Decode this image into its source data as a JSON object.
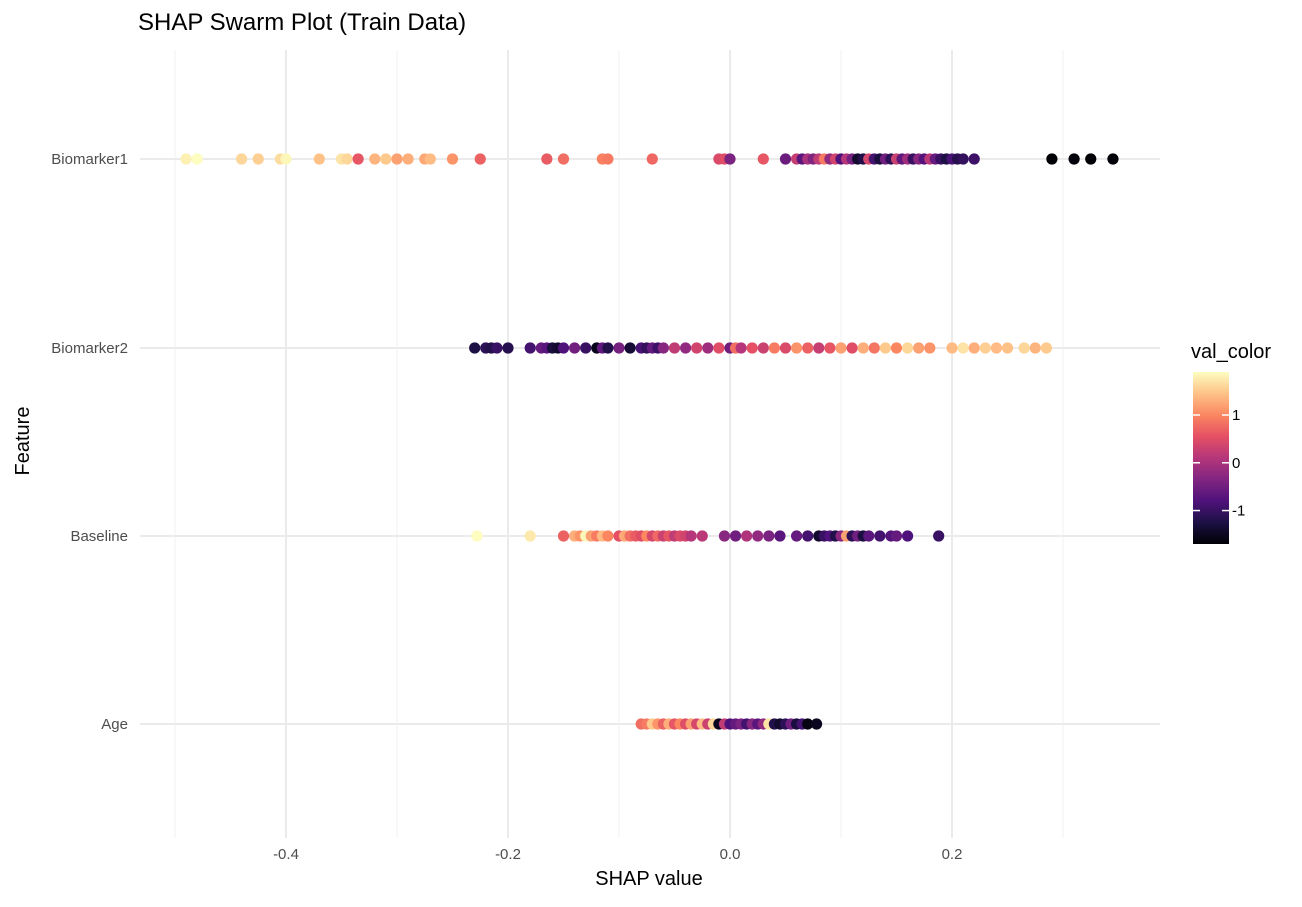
{
  "chart_data": {
    "type": "scatter",
    "subtype": "swarm",
    "title": "SHAP Swarm Plot (Train Data)",
    "xlabel": "SHAP value",
    "ylabel": "Feature",
    "xlim": [
      -0.5,
      0.38
    ],
    "x_ticks": [
      -0.4,
      -0.2,
      0.0,
      0.2
    ],
    "x_tick_labels": [
      "-0.4",
      "-0.2",
      "0.0",
      "0.2"
    ],
    "categories": [
      "Biomarker1",
      "Biomarker2",
      "Baseline",
      "Age"
    ],
    "grid": true,
    "legend": {
      "title": "val_color",
      "placement": "right",
      "ticks": [
        1,
        0,
        -1
      ],
      "tick_labels": [
        "1",
        "0",
        "-1"
      ],
      "range": [
        -1.7,
        1.9
      ],
      "palette": "magma",
      "colors": [
        "#000004",
        "#1c1044",
        "#4f127b",
        "#812581",
        "#b5367a",
        "#e55064",
        "#fb8761",
        "#fec287",
        "#fcfdbf"
      ]
    },
    "series": [
      {
        "feature": "Biomarker1",
        "points": [
          [
            -0.49,
            1.8
          ],
          [
            -0.48,
            1.9
          ],
          [
            -0.44,
            1.6
          ],
          [
            -0.425,
            1.55
          ],
          [
            -0.405,
            1.65
          ],
          [
            -0.4,
            1.85
          ],
          [
            -0.37,
            1.45
          ],
          [
            -0.35,
            1.7
          ],
          [
            -0.345,
            1.6
          ],
          [
            -0.335,
            0.6
          ],
          [
            -0.32,
            1.35
          ],
          [
            -0.31,
            1.5
          ],
          [
            -0.3,
            1.2
          ],
          [
            -0.29,
            1.3
          ],
          [
            -0.275,
            1.25
          ],
          [
            -0.27,
            1.4
          ],
          [
            -0.25,
            1.1
          ],
          [
            -0.225,
            0.7
          ],
          [
            -0.165,
            0.65
          ],
          [
            -0.15,
            0.8
          ],
          [
            -0.115,
            0.95
          ],
          [
            -0.11,
            0.9
          ],
          [
            -0.07,
            0.75
          ],
          [
            -0.01,
            0.45
          ],
          [
            -0.005,
            0.5
          ],
          [
            0.0,
            -0.4
          ],
          [
            0.03,
            0.6
          ],
          [
            0.05,
            -0.55
          ],
          [
            0.06,
            0.25
          ],
          [
            0.065,
            -0.7
          ],
          [
            0.07,
            0.0
          ],
          [
            0.075,
            -0.35
          ],
          [
            0.08,
            0.2
          ],
          [
            0.085,
            0.9
          ],
          [
            0.09,
            -0.2
          ],
          [
            0.095,
            0.35
          ],
          [
            0.1,
            -0.8
          ],
          [
            0.105,
            0.1
          ],
          [
            0.11,
            -0.45
          ],
          [
            0.115,
            -1.4
          ],
          [
            0.12,
            -1.2
          ],
          [
            0.125,
            0.4
          ],
          [
            0.13,
            -0.9
          ],
          [
            0.135,
            -1.3
          ],
          [
            0.14,
            -0.5
          ],
          [
            0.145,
            -1.1
          ],
          [
            0.15,
            0.3
          ],
          [
            0.155,
            -0.65
          ],
          [
            0.16,
            -0.1
          ],
          [
            0.165,
            -1.0
          ],
          [
            0.17,
            -0.3
          ],
          [
            0.175,
            -0.75
          ],
          [
            0.18,
            0.15
          ],
          [
            0.185,
            -0.6
          ],
          [
            0.19,
            -1.0
          ],
          [
            0.195,
            -1.25
          ],
          [
            0.2,
            -0.85
          ],
          [
            0.205,
            -1.15
          ],
          [
            0.21,
            -1.05
          ],
          [
            0.22,
            -0.95
          ],
          [
            0.29,
            -1.7
          ],
          [
            0.31,
            -1.65
          ],
          [
            0.325,
            -1.7
          ],
          [
            0.345,
            -1.68
          ]
        ]
      },
      {
        "feature": "Biomarker2",
        "points": [
          [
            -0.23,
            -1.25
          ],
          [
            -0.22,
            -1.1
          ],
          [
            -0.215,
            -1.2
          ],
          [
            -0.21,
            -1.0
          ],
          [
            -0.2,
            -1.15
          ],
          [
            -0.18,
            -0.9
          ],
          [
            -0.17,
            -0.6
          ],
          [
            -0.165,
            -0.7
          ],
          [
            -0.16,
            -1.3
          ],
          [
            -0.155,
            -1.4
          ],
          [
            -0.15,
            -0.8
          ],
          [
            -0.14,
            -0.5
          ],
          [
            -0.13,
            -1.0
          ],
          [
            -0.12,
            -1.55
          ],
          [
            -0.115,
            -0.65
          ],
          [
            -0.11,
            -1.2
          ],
          [
            -0.1,
            -0.45
          ],
          [
            -0.09,
            -1.35
          ],
          [
            -0.08,
            -0.85
          ],
          [
            -0.075,
            -1.05
          ],
          [
            -0.07,
            -0.6
          ],
          [
            -0.065,
            -0.95
          ],
          [
            -0.06,
            -0.3
          ],
          [
            -0.05,
            0.2
          ],
          [
            -0.04,
            -0.2
          ],
          [
            -0.03,
            0.35
          ],
          [
            -0.02,
            -0.1
          ],
          [
            -0.01,
            0.5
          ],
          [
            0.0,
            -0.5
          ],
          [
            0.005,
            0.8
          ],
          [
            0.01,
            0.1
          ],
          [
            0.02,
            0.55
          ],
          [
            0.03,
            0.3
          ],
          [
            0.04,
            0.9
          ],
          [
            0.05,
            0.45
          ],
          [
            0.06,
            1.1
          ],
          [
            0.07,
            0.7
          ],
          [
            0.08,
            0.25
          ],
          [
            0.09,
            0.6
          ],
          [
            0.1,
            1.2
          ],
          [
            0.11,
            0.5
          ],
          [
            0.12,
            1.3
          ],
          [
            0.13,
            0.85
          ],
          [
            0.14,
            1.5
          ],
          [
            0.15,
            1.0
          ],
          [
            0.16,
            1.6
          ],
          [
            0.17,
            1.2
          ],
          [
            0.18,
            1.1
          ],
          [
            0.2,
            1.4
          ],
          [
            0.21,
            1.7
          ],
          [
            0.22,
            1.3
          ],
          [
            0.23,
            1.55
          ],
          [
            0.24,
            1.4
          ],
          [
            0.25,
            1.45
          ],
          [
            0.265,
            1.6
          ],
          [
            0.275,
            1.35
          ],
          [
            0.285,
            1.5
          ]
        ]
      },
      {
        "feature": "Baseline",
        "points": [
          [
            -0.228,
            1.9
          ],
          [
            -0.18,
            1.75
          ],
          [
            -0.15,
            0.7
          ],
          [
            -0.14,
            1.3
          ],
          [
            -0.135,
            1.1
          ],
          [
            -0.13,
            1.85
          ],
          [
            -0.125,
            1.2
          ],
          [
            -0.12,
            0.9
          ],
          [
            -0.115,
            1.4
          ],
          [
            -0.11,
            1.0
          ],
          [
            -0.1,
            0.55
          ],
          [
            -0.095,
            1.25
          ],
          [
            -0.09,
            0.8
          ],
          [
            -0.085,
            0.65
          ],
          [
            -0.08,
            0.5
          ],
          [
            -0.075,
            1.0
          ],
          [
            -0.07,
            0.4
          ],
          [
            -0.065,
            0.75
          ],
          [
            -0.06,
            0.3
          ],
          [
            -0.055,
            0.6
          ],
          [
            -0.05,
            0.2
          ],
          [
            -0.045,
            0.45
          ],
          [
            -0.04,
            0.35
          ],
          [
            -0.035,
            0.1
          ],
          [
            -0.025,
            0.15
          ],
          [
            -0.005,
            -0.3
          ],
          [
            0.005,
            -0.5
          ],
          [
            0.015,
            0.05
          ],
          [
            0.025,
            -0.2
          ],
          [
            0.035,
            -0.4
          ],
          [
            0.045,
            -0.7
          ],
          [
            0.06,
            -0.6
          ],
          [
            0.07,
            -0.9
          ],
          [
            0.08,
            -1.4
          ],
          [
            0.085,
            -1.0
          ],
          [
            0.09,
            -0.8
          ],
          [
            0.095,
            -1.2
          ],
          [
            0.1,
            -0.3
          ],
          [
            0.105,
            1.2
          ],
          [
            0.11,
            -1.1
          ],
          [
            0.115,
            -0.5
          ],
          [
            0.12,
            -1.3
          ],
          [
            0.125,
            -0.7
          ],
          [
            0.135,
            -0.9
          ],
          [
            0.145,
            -0.75
          ],
          [
            0.15,
            -0.6
          ],
          [
            0.16,
            -0.8
          ],
          [
            0.188,
            -1.0
          ]
        ]
      },
      {
        "feature": "Age",
        "points": [
          [
            -0.08,
            0.8
          ],
          [
            -0.075,
            0.9
          ],
          [
            -0.07,
            1.5
          ],
          [
            -0.065,
            1.1
          ],
          [
            -0.06,
            0.7
          ],
          [
            -0.055,
            1.3
          ],
          [
            -0.05,
            0.6
          ],
          [
            -0.045,
            1.0
          ],
          [
            -0.04,
            0.5
          ],
          [
            -0.035,
            1.2
          ],
          [
            -0.03,
            0.4
          ],
          [
            -0.025,
            1.4
          ],
          [
            -0.02,
            0.3
          ],
          [
            -0.015,
            1.6
          ],
          [
            -0.01,
            -1.5
          ],
          [
            -0.005,
            0.2
          ],
          [
            0.0,
            -0.8
          ],
          [
            0.005,
            -0.6
          ],
          [
            0.01,
            -0.4
          ],
          [
            0.015,
            -0.9
          ],
          [
            0.02,
            -0.3
          ],
          [
            0.025,
            -0.7
          ],
          [
            0.03,
            -0.2
          ],
          [
            0.035,
            1.7
          ],
          [
            0.04,
            -1.2
          ],
          [
            0.045,
            -1.4
          ],
          [
            0.05,
            -1.1
          ],
          [
            0.055,
            -0.5
          ],
          [
            0.06,
            -1.3
          ],
          [
            0.065,
            -0.9
          ],
          [
            0.07,
            -1.6
          ],
          [
            0.078,
            -1.5
          ]
        ]
      }
    ]
  }
}
